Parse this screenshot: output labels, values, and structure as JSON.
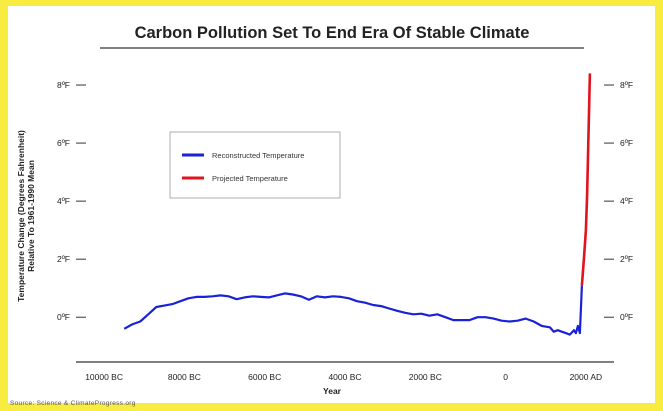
{
  "chart_data": {
    "type": "line",
    "title": "Carbon Pollution Set To End Era Of Stable Climate",
    "xlabel": "Year",
    "ylabel": "Temperature Change (Degrees Fahrenheit)",
    "ylabel2": "Relative To 1961-1990 Mean",
    "source": "Source: Science & ClimateProgress.org",
    "xlim": [
      -10700,
      2700
    ],
    "ylim": [
      -1.2,
      9.0
    ],
    "x_ticks": [
      {
        "value": -10000,
        "label": "10000 BC"
      },
      {
        "value": -8000,
        "label": "8000 BC"
      },
      {
        "value": -6000,
        "label": "6000 BC"
      },
      {
        "value": -4000,
        "label": "4000 BC"
      },
      {
        "value": -2000,
        "label": "2000 BC"
      },
      {
        "value": 0,
        "label": "0"
      },
      {
        "value": 2000,
        "label": "2000 AD"
      }
    ],
    "y_ticks": [
      {
        "value": 0,
        "label": "0ºF"
      },
      {
        "value": 2,
        "label": "2ºF"
      },
      {
        "value": 4,
        "label": "4ºF"
      },
      {
        "value": 6,
        "label": "6ºF"
      },
      {
        "value": 8,
        "label": "8ºF"
      }
    ],
    "grid": false,
    "legend_position": "upper-left",
    "series": [
      {
        "name": "Reconstructed Temperature",
        "color": "#1a22d6",
        "x": [
          -9500,
          -9300,
          -9100,
          -8900,
          -8700,
          -8500,
          -8300,
          -8100,
          -7900,
          -7700,
          -7500,
          -7300,
          -7100,
          -6900,
          -6700,
          -6500,
          -6300,
          -6100,
          -5900,
          -5700,
          -5500,
          -5300,
          -5100,
          -4900,
          -4700,
          -4500,
          -4300,
          -4100,
          -3900,
          -3700,
          -3500,
          -3300,
          -3100,
          -2900,
          -2700,
          -2500,
          -2300,
          -2100,
          -1900,
          -1700,
          -1500,
          -1300,
          -1100,
          -900,
          -700,
          -500,
          -300,
          -100,
          100,
          300,
          500,
          700,
          900,
          1100,
          1200,
          1300,
          1400,
          1500,
          1600,
          1700,
          1750,
          1800,
          1850,
          1900
        ],
        "y": [
          -0.4,
          -0.25,
          -0.15,
          0.1,
          0.35,
          0.4,
          0.45,
          0.55,
          0.65,
          0.7,
          0.7,
          0.72,
          0.75,
          0.72,
          0.62,
          0.68,
          0.72,
          0.7,
          0.68,
          0.75,
          0.82,
          0.78,
          0.72,
          0.6,
          0.72,
          0.68,
          0.72,
          0.7,
          0.65,
          0.55,
          0.5,
          0.42,
          0.38,
          0.3,
          0.22,
          0.15,
          0.1,
          0.12,
          0.05,
          0.1,
          0.0,
          -0.1,
          -0.1,
          -0.1,
          0.0,
          0.0,
          -0.05,
          -0.12,
          -0.15,
          -0.12,
          -0.05,
          -0.15,
          -0.3,
          -0.35,
          -0.5,
          -0.45,
          -0.5,
          -0.55,
          -0.6,
          -0.45,
          -0.55,
          -0.3,
          -0.55,
          1.1
        ]
      },
      {
        "name": "Projected Temperature",
        "color": "#e0141e",
        "x": [
          1900,
          1950,
          2000,
          2030,
          2050,
          2070,
          2085,
          2100
        ],
        "y": [
          1.1,
          2.0,
          3.0,
          4.2,
          5.4,
          6.6,
          7.5,
          8.4
        ]
      }
    ]
  }
}
